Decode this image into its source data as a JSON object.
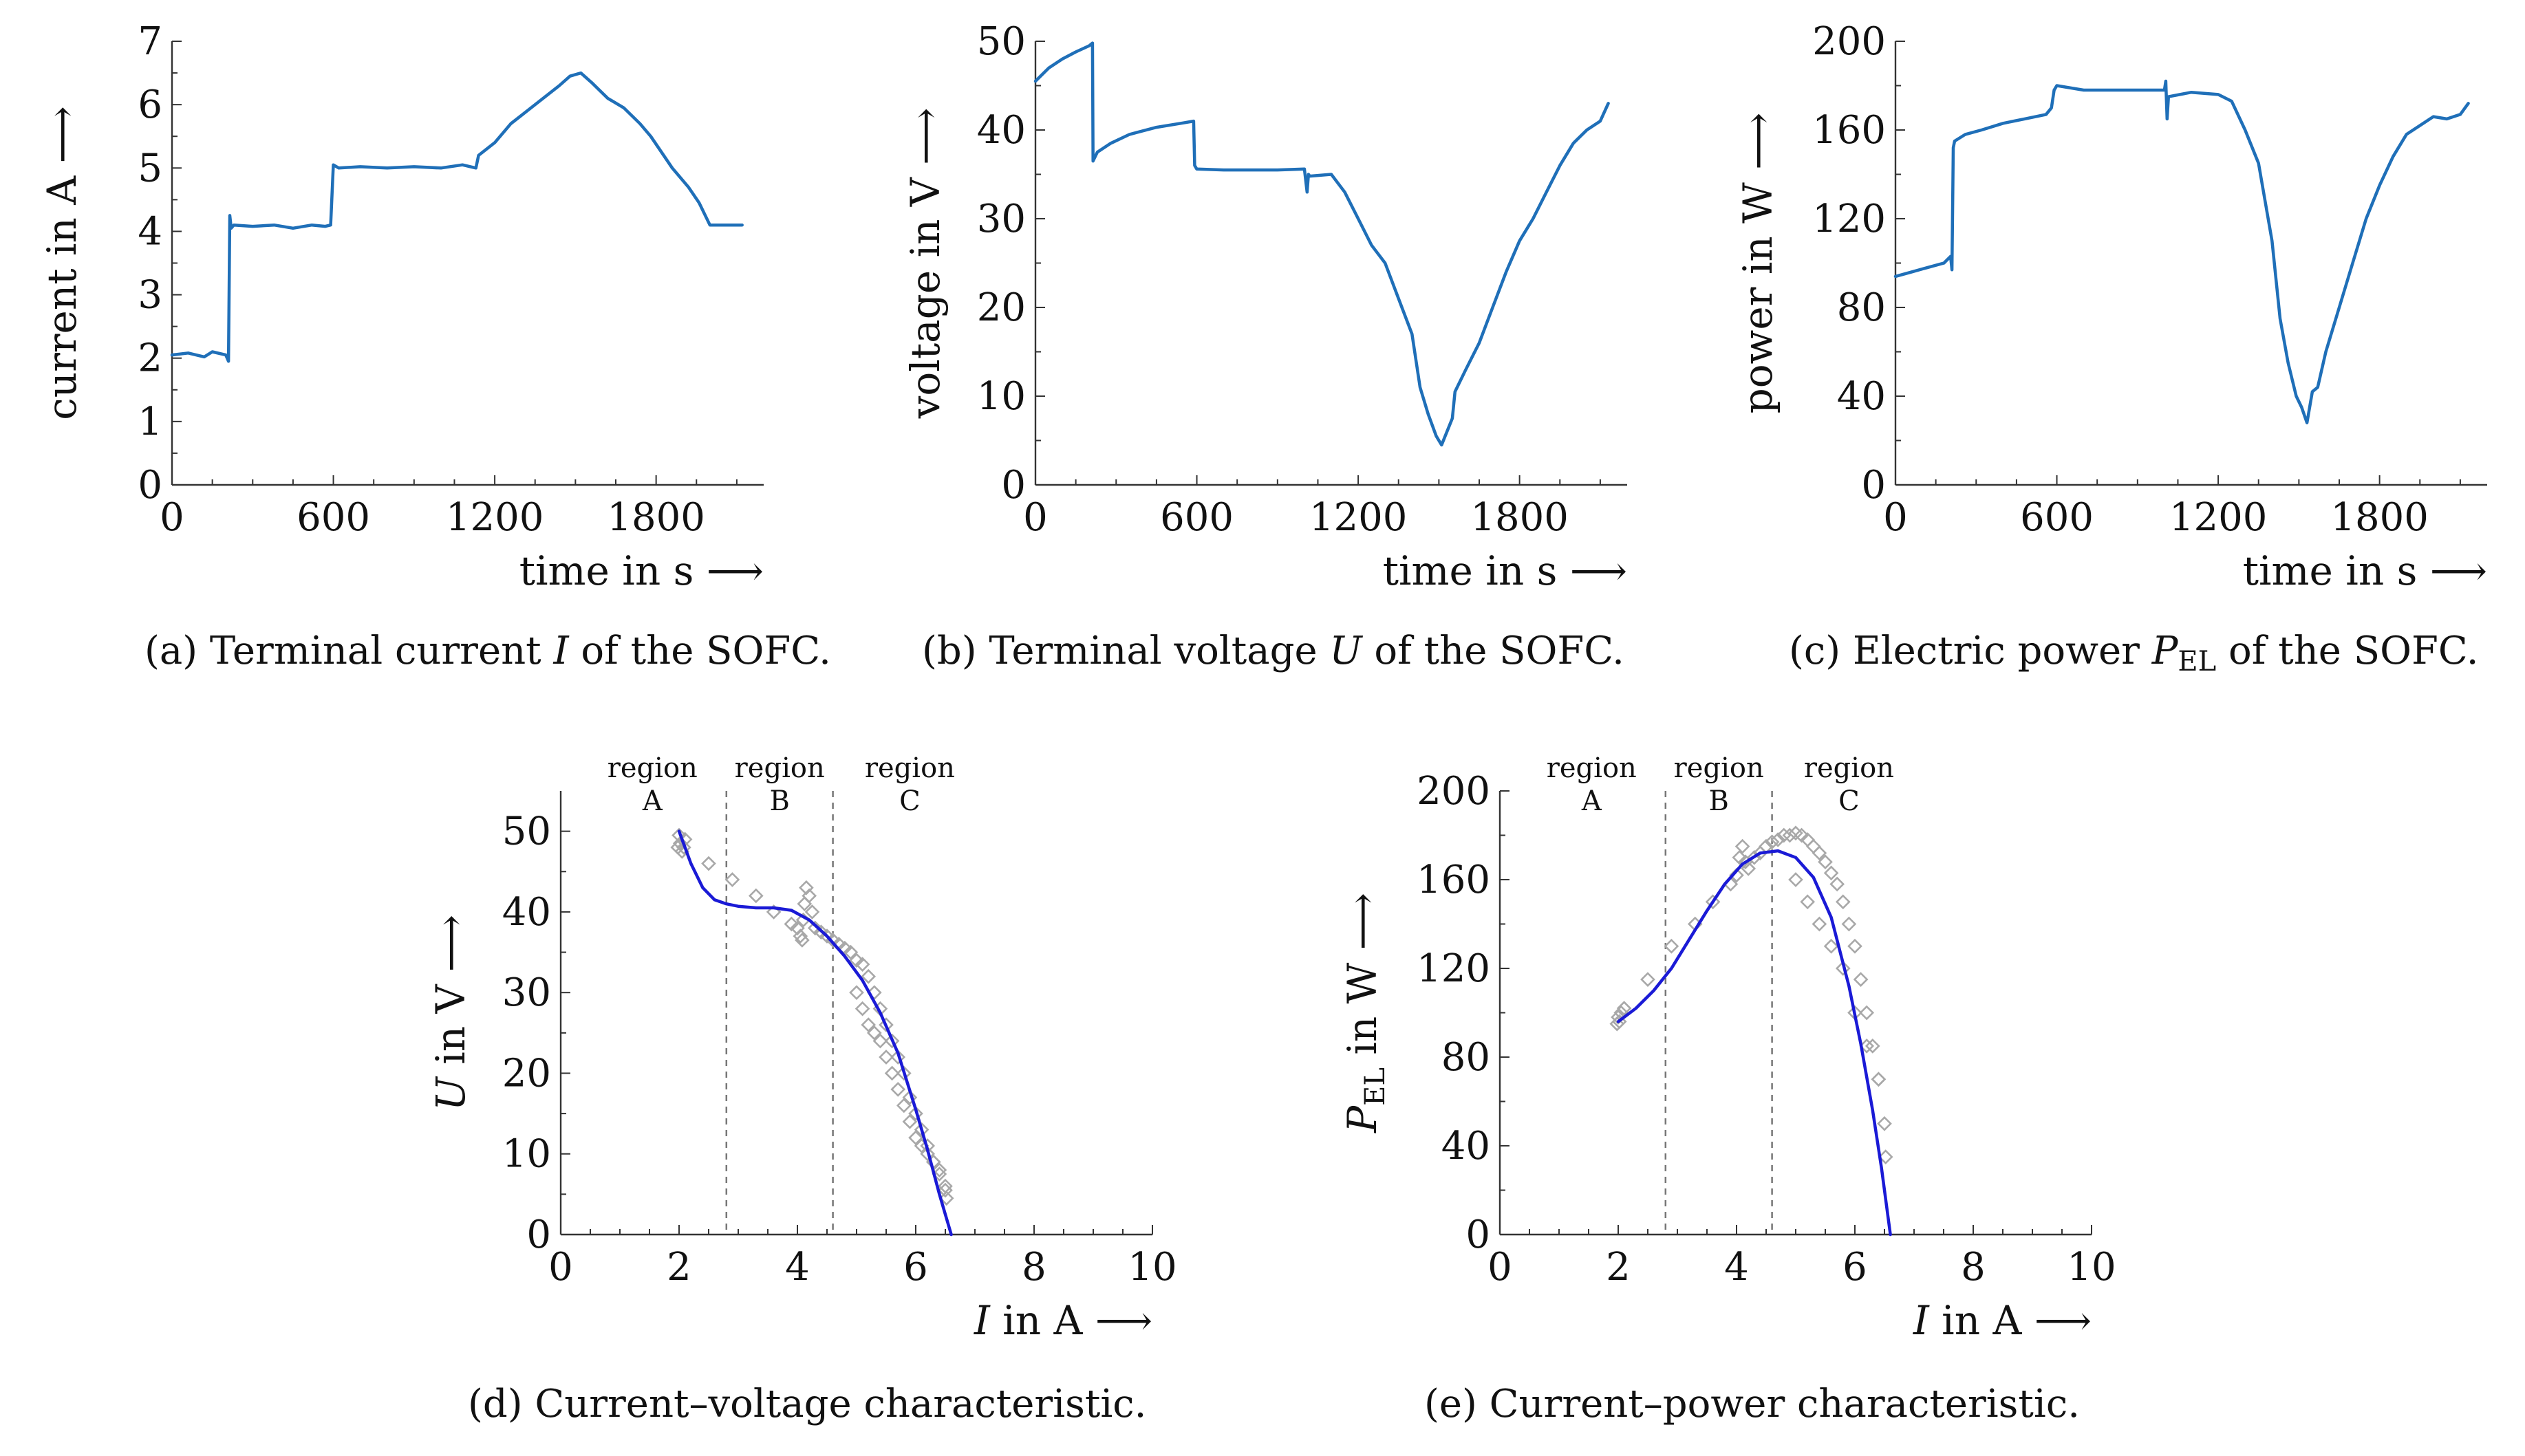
{
  "colors": {
    "measurement_line": "#1f6fb8",
    "fit_line": "#1a1ad6",
    "scatter": "#a8a8a8",
    "region_line": "#777777"
  },
  "chart_data": [
    {
      "type": "line",
      "panel": "a",
      "title": "(a) Terminal current I of the SOFC.",
      "caption_parts": [
        "(a)",
        "Terminal current ",
        "I",
        " of the SOFC."
      ],
      "xlabel": "time in s ⟶",
      "ylabel": "current in A ⟶",
      "xlim": [
        0,
        2200
      ],
      "ylim": [
        0,
        7
      ],
      "xticks": [
        0,
        600,
        1200,
        1800
      ],
      "yticks": [
        0,
        1,
        2,
        3,
        4,
        5,
        6,
        7
      ],
      "xtick_labels": [
        "0",
        "600",
        "1200",
        "1800"
      ],
      "ytick_labels": [
        "0",
        "1",
        "2",
        "3",
        "4",
        "5",
        "6",
        "7"
      ],
      "series": [
        {
          "name": "current",
          "x": [
            0,
            60,
            120,
            150,
            200,
            210,
            215,
            220,
            230,
            300,
            380,
            450,
            520,
            570,
            590,
            600,
            620,
            700,
            800,
            900,
            1000,
            1080,
            1130,
            1140,
            1200,
            1260,
            1320,
            1380,
            1440,
            1480,
            1520,
            1560,
            1620,
            1680,
            1740,
            1780,
            1820,
            1860,
            1920,
            1960,
            2000,
            2060,
            2120
          ],
          "y": [
            2.05,
            2.08,
            2.02,
            2.1,
            2.05,
            1.95,
            4.25,
            4.05,
            4.1,
            4.08,
            4.1,
            4.05,
            4.1,
            4.08,
            4.1,
            5.05,
            5.0,
            5.02,
            5.0,
            5.02,
            5.0,
            5.05,
            5.0,
            5.2,
            5.4,
            5.7,
            5.9,
            6.1,
            6.3,
            6.45,
            6.5,
            6.35,
            6.1,
            5.95,
            5.7,
            5.5,
            5.25,
            5.0,
            4.7,
            4.45,
            4.1,
            4.1,
            4.1
          ]
        }
      ]
    },
    {
      "type": "line",
      "panel": "b",
      "title": "(b) Terminal voltage U of the SOFC.",
      "caption_parts": [
        "(b)",
        "Terminal voltage ",
        "U",
        " of the SOFC."
      ],
      "xlabel": "time in s ⟶",
      "ylabel": "voltage in V ⟶",
      "xlim": [
        0,
        2200
      ],
      "ylim": [
        0,
        50
      ],
      "xticks": [
        0,
        600,
        1200,
        1800
      ],
      "yticks": [
        0,
        10,
        20,
        30,
        40,
        50
      ],
      "xtick_labels": [
        "0",
        "600",
        "1200",
        "1800"
      ],
      "ytick_labels": [
        "0",
        "10",
        "20",
        "30",
        "40",
        "50"
      ],
      "series": [
        {
          "name": "voltage",
          "x": [
            0,
            50,
            100,
            150,
            200,
            212,
            214,
            230,
            280,
            350,
            450,
            550,
            588,
            592,
            600,
            700,
            800,
            900,
            1000,
            1010,
            1015,
            1020,
            1100,
            1150,
            1200,
            1250,
            1300,
            1350,
            1400,
            1430,
            1460,
            1490,
            1510,
            1530,
            1550,
            1560,
            1600,
            1650,
            1700,
            1750,
            1800,
            1850,
            1900,
            1950,
            2000,
            2050,
            2100,
            2130
          ],
          "y": [
            45.5,
            47,
            48,
            48.8,
            49.5,
            49.8,
            36.5,
            37.5,
            38.5,
            39.5,
            40.3,
            40.8,
            41,
            36,
            35.6,
            35.5,
            35.5,
            35.5,
            35.6,
            33,
            35,
            34.8,
            35,
            33,
            30,
            27,
            25,
            21,
            17,
            11,
            8,
            5.5,
            4.5,
            6,
            7.5,
            10.5,
            13,
            16,
            20,
            24,
            27.5,
            30,
            33,
            36,
            38.5,
            40,
            41,
            43
          ]
        }
      ]
    },
    {
      "type": "line",
      "panel": "c",
      "title": "(c) Electric power P_EL of the SOFC.",
      "caption_parts": [
        "(c)",
        "Electric power ",
        "P",
        "EL",
        " of the SOFC."
      ],
      "xlabel": "time in s ⟶",
      "ylabel": "power in W ⟶",
      "xlim": [
        0,
        2200
      ],
      "ylim": [
        0,
        200
      ],
      "xticks": [
        0,
        600,
        1200,
        1800
      ],
      "yticks": [
        0,
        40,
        80,
        120,
        160,
        200
      ],
      "xtick_labels": [
        "0",
        "600",
        "1200",
        "1800"
      ],
      "ytick_labels": [
        "0",
        "40",
        "80",
        "120",
        "160",
        "200"
      ],
      "series": [
        {
          "name": "power",
          "x": [
            0,
            60,
            120,
            180,
            205,
            210,
            215,
            220,
            260,
            320,
            400,
            480,
            560,
            580,
            590,
            600,
            700,
            800,
            900,
            1000,
            1005,
            1010,
            1015,
            1100,
            1200,
            1250,
            1300,
            1350,
            1400,
            1430,
            1460,
            1490,
            1510,
            1530,
            1550,
            1570,
            1600,
            1650,
            1700,
            1750,
            1800,
            1850,
            1900,
            1950,
            2000,
            2050,
            2100,
            2130
          ],
          "y": [
            94,
            96,
            98,
            100,
            103,
            97,
            152,
            155,
            158,
            160,
            163,
            165,
            167,
            170,
            178,
            180,
            178,
            178,
            178,
            178,
            182,
            165,
            175,
            177,
            176,
            173,
            160,
            145,
            110,
            75,
            55,
            40,
            35,
            28,
            42,
            44,
            60,
            80,
            100,
            120,
            135,
            148,
            158,
            162,
            166,
            165,
            167,
            172
          ]
        }
      ]
    },
    {
      "type": "scatter",
      "panel": "d",
      "title": "(d) Current–voltage characteristic.",
      "caption_parts": [
        "(d)",
        "Current–voltage characteristic."
      ],
      "xlabel": "I in A ⟶",
      "xlabel_parts": [
        "I",
        " in A ⟶"
      ],
      "ylabel": "U in V ⟶",
      "ylabel_parts": [
        "U",
        " in V ⟶"
      ],
      "xlim": [
        0,
        10
      ],
      "ylim": [
        0,
        55
      ],
      "xticks": [
        0,
        2,
        4,
        6,
        8,
        10
      ],
      "yticks": [
        0,
        10,
        20,
        30,
        40,
        50
      ],
      "xtick_labels": [
        "0",
        "2",
        "4",
        "6",
        "8",
        "10"
      ],
      "ytick_labels": [
        "0",
        "10",
        "20",
        "30",
        "40",
        "50"
      ],
      "regions": [
        {
          "label_1": "region",
          "label_2": "A",
          "x_start": 0,
          "x_end": 2.8
        },
        {
          "label_1": "region",
          "label_2": "B",
          "x_start": 2.8,
          "x_end": 4.6
        },
        {
          "label_1": "region",
          "label_2": "C",
          "x_start": 4.6,
          "x_end": 10
        }
      ],
      "region_boundaries": [
        2.8,
        4.6
      ],
      "measurements": {
        "name": "measurement",
        "x": [
          1.98,
          2.0,
          2.02,
          2.05,
          2.08,
          2.1,
          2.5,
          2.9,
          3.3,
          3.6,
          3.9,
          4.0,
          4.05,
          4.08,
          4.1,
          4.12,
          4.15,
          4.2,
          4.25,
          4.3,
          4.4,
          4.5,
          4.6,
          4.7,
          4.8,
          4.9,
          5.0,
          5.1,
          5.2,
          5.3,
          5.4,
          5.5,
          5.6,
          5.7,
          5.8,
          5.9,
          6.0,
          6.1,
          6.2,
          6.3,
          6.4,
          6.5,
          6.52,
          5.0,
          5.1,
          5.2,
          5.3,
          5.4,
          5.5,
          5.6,
          5.7,
          5.8,
          5.9,
          6.0,
          6.1,
          6.2,
          6.3,
          6.4,
          6.5
        ],
        "y": [
          48,
          49.5,
          48.5,
          47.5,
          48,
          49,
          46,
          44,
          42,
          40,
          38.5,
          38,
          37,
          36.5,
          39,
          41,
          43,
          42,
          40,
          38,
          37.5,
          37,
          36.5,
          36,
          35.5,
          35,
          34,
          33.5,
          32,
          30,
          28,
          26,
          24,
          22,
          20,
          17,
          15,
          13,
          11,
          9,
          7.5,
          5.5,
          4.5,
          30,
          28,
          26,
          25,
          24,
          22,
          20,
          18,
          16,
          14,
          12,
          11,
          10,
          9,
          8,
          6
        ]
      },
      "series": [
        {
          "name": "fit",
          "x": [
            2.0,
            2.2,
            2.4,
            2.6,
            2.8,
            3.0,
            3.3,
            3.6,
            3.9,
            4.2,
            4.5,
            4.8,
            5.1,
            5.4,
            5.7,
            6.0,
            6.2,
            6.4,
            6.5,
            6.6
          ],
          "y": [
            50,
            46,
            43,
            41.5,
            41,
            40.7,
            40.5,
            40.5,
            40.2,
            39,
            37,
            34.5,
            31.5,
            27.5,
            22.5,
            15.5,
            10.5,
            5,
            2.5,
            0
          ]
        }
      ]
    },
    {
      "type": "scatter",
      "panel": "e",
      "title": "(e) Current–power characteristic.",
      "caption_parts": [
        "(e)",
        "Current–power characteristic."
      ],
      "xlabel": "I in A ⟶",
      "xlabel_parts": [
        "I",
        " in A ⟶"
      ],
      "ylabel": "P_EL in W ⟶",
      "ylabel_parts": [
        "P",
        "EL",
        " in W ⟶"
      ],
      "xlim": [
        0,
        10
      ],
      "ylim": [
        0,
        200
      ],
      "xticks": [
        0,
        2,
        4,
        6,
        8,
        10
      ],
      "yticks": [
        0,
        40,
        80,
        120,
        160,
        200
      ],
      "xtick_labels": [
        "0",
        "2",
        "4",
        "6",
        "8",
        "10"
      ],
      "ytick_labels": [
        "0",
        "40",
        "80",
        "120",
        "160",
        "200"
      ],
      "regions": [
        {
          "label_1": "region",
          "label_2": "A",
          "x_start": 0,
          "x_end": 2.8
        },
        {
          "label_1": "region",
          "label_2": "B",
          "x_start": 2.8,
          "x_end": 4.6
        },
        {
          "label_1": "region",
          "label_2": "C",
          "x_start": 4.6,
          "x_end": 10
        }
      ],
      "region_boundaries": [
        2.8,
        4.6
      ],
      "measurements": {
        "name": "measurement",
        "x": [
          1.98,
          2.0,
          2.02,
          2.05,
          2.1,
          2.5,
          2.9,
          3.3,
          3.6,
          3.9,
          4.0,
          4.05,
          4.1,
          4.15,
          4.2,
          4.3,
          4.4,
          4.5,
          4.6,
          4.7,
          4.8,
          4.9,
          5.0,
          5.1,
          5.2,
          5.3,
          5.4,
          5.5,
          5.6,
          5.7,
          5.8,
          5.9,
          6.0,
          6.1,
          6.2,
          6.3,
          6.4,
          6.5,
          6.52,
          5.0,
          5.2,
          5.4,
          5.6,
          5.8,
          6.0,
          6.2,
          6.4
        ],
        "y": [
          95,
          98,
          96,
          100,
          102,
          115,
          130,
          140,
          150,
          158,
          162,
          170,
          175,
          168,
          165,
          170,
          172,
          175,
          177,
          178,
          180,
          180,
          181,
          180,
          178,
          175,
          172,
          168,
          163,
          158,
          150,
          140,
          130,
          115,
          100,
          85,
          70,
          50,
          35,
          160,
          150,
          140,
          130,
          120,
          100,
          85,
          70
        ]
      },
      "series": [
        {
          "name": "fit",
          "x": [
            2.0,
            2.3,
            2.6,
            2.9,
            3.2,
            3.5,
            3.8,
            4.1,
            4.4,
            4.7,
            5.0,
            5.3,
            5.6,
            5.9,
            6.1,
            6.3,
            6.45,
            6.6
          ],
          "y": [
            96,
            102,
            110,
            120,
            133,
            146,
            158,
            167,
            172,
            173,
            170,
            161,
            143,
            112,
            86,
            56,
            30,
            0
          ]
        }
      ]
    }
  ]
}
